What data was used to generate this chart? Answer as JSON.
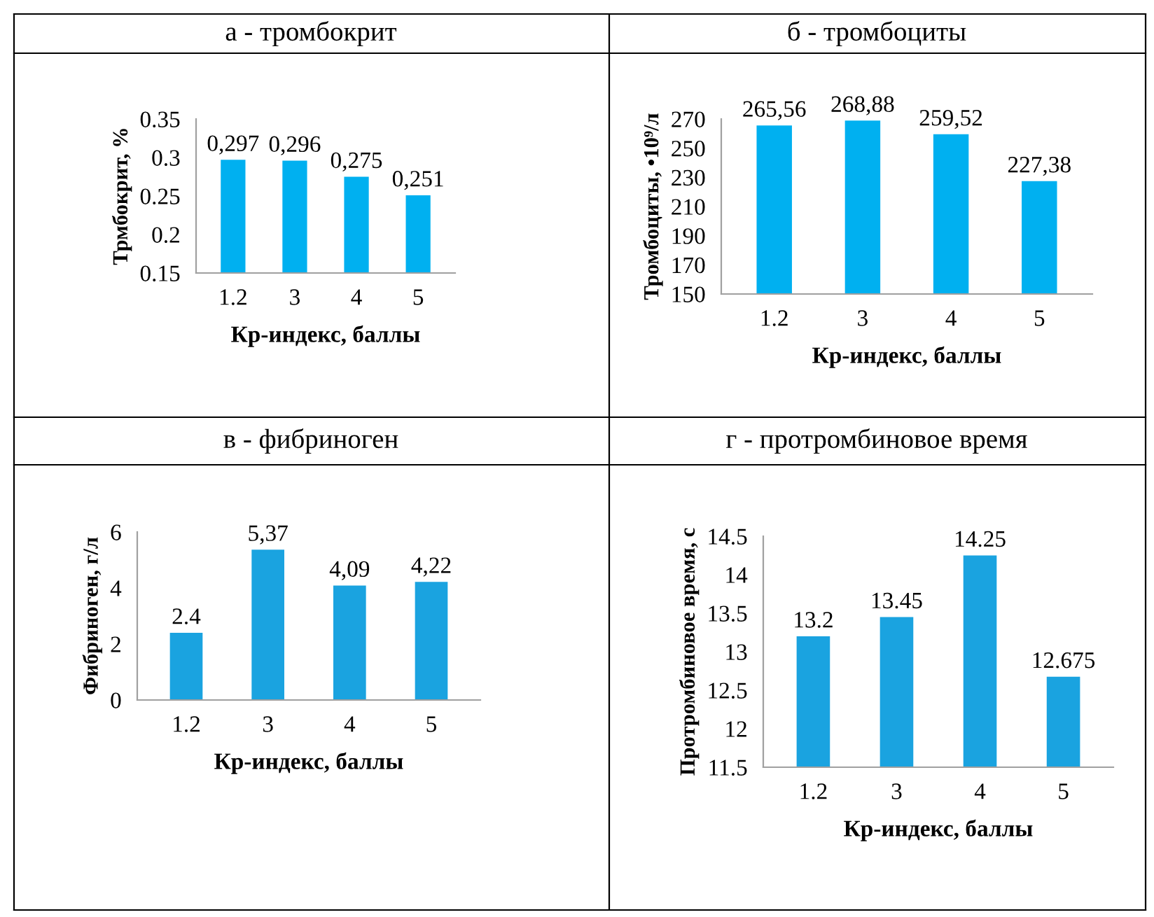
{
  "chart_data": [
    {
      "type": "bar",
      "title": "а - тромбокрит",
      "xlabel": "Кр-индекс, баллы",
      "ylabel": "Трмбокрит, %",
      "categories": [
        "1.2",
        "3",
        "4",
        "5"
      ],
      "values": [
        0.297,
        0.296,
        0.275,
        0.251
      ],
      "value_labels": [
        "0,297",
        "0,296",
        "0,275",
        "0,251"
      ],
      "color": "#00b0f0",
      "ylim": [
        0.15,
        0.35
      ],
      "yticks": [
        0.15,
        0.2,
        0.25,
        0.3,
        0.35
      ],
      "grid": false,
      "legend": false
    },
    {
      "type": "bar",
      "title": "б - тромбоциты",
      "xlabel": "Кр-индекс, баллы",
      "ylabel": "Тромбоциты, •10⁹/л",
      "categories": [
        "1.2",
        "3",
        "4",
        "5"
      ],
      "values": [
        265.56,
        268.88,
        259.52,
        227.38
      ],
      "value_labels": [
        "265,56",
        "268,88",
        "259,52",
        "227,38"
      ],
      "color": "#00b0f0",
      "ylim": [
        150,
        270
      ],
      "yticks": [
        150,
        170,
        190,
        210,
        230,
        250,
        270
      ],
      "grid": false,
      "legend": false
    },
    {
      "type": "bar",
      "title": "в - фибриноген",
      "xlabel": "Кр-индекс, баллы",
      "ylabel": "Фибриноген, г/л",
      "categories": [
        "1.2",
        "3",
        "4",
        "5"
      ],
      "values": [
        2.4,
        5.37,
        4.09,
        4.22
      ],
      "value_labels": [
        "2.4",
        "5,37",
        "4,09",
        "4,22"
      ],
      "color": "#1aa3e0",
      "ylim": [
        0,
        6
      ],
      "yticks": [
        0,
        2,
        4,
        6
      ],
      "grid": false,
      "legend": false
    },
    {
      "type": "bar",
      "title": "г - протромбиновое время",
      "xlabel": "Кр-индекс, баллы",
      "ylabel": "Протромбиновое время, с",
      "categories": [
        "1.2",
        "3",
        "4",
        "5"
      ],
      "values": [
        13.2,
        13.45,
        14.25,
        12.675
      ],
      "value_labels": [
        "13.2",
        "13.45",
        "14.25",
        "12.675"
      ],
      "color": "#1aa3e0",
      "ylim": [
        11.5,
        14.5
      ],
      "yticks": [
        11.5,
        12,
        12.5,
        13,
        13.5,
        14,
        14.5
      ],
      "grid": false,
      "legend": false
    }
  ]
}
